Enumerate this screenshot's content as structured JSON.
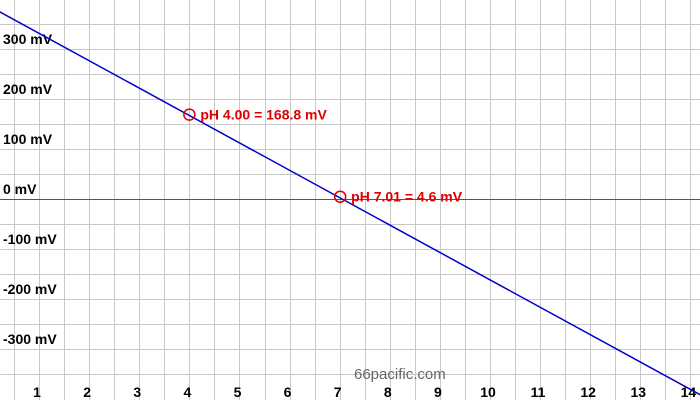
{
  "chart_data": {
    "type": "line",
    "title": "",
    "xlabel": "",
    "ylabel": "",
    "xlim": [
      0.2,
      14.2
    ],
    "ylim": [
      -377,
      400
    ],
    "grid": true,
    "x_ticks": [
      1,
      2,
      3,
      4,
      5,
      6,
      7,
      8,
      9,
      10,
      11,
      12,
      13,
      14
    ],
    "y_ticks": [
      300,
      200,
      100,
      0,
      -100,
      -200,
      -300
    ],
    "y_tick_labels": [
      "300 mV",
      "200 mV",
      "100 mV",
      "0 mV",
      "-100 mV",
      "-200 mV",
      "-300 mV"
    ],
    "series": [
      {
        "x": [
          0,
          14.2
        ],
        "y": [
          386.1,
          -391.7
        ]
      }
    ],
    "points": [
      {
        "x": 4.0,
        "y": 168.8,
        "label": "pH 4.00 = 168.8 mV"
      },
      {
        "x": 7.01,
        "y": 4.6,
        "label": "pH 7.01 = 4.6 mV"
      }
    ],
    "line_color": "#0000cc",
    "point_color": "#dd0000",
    "watermark": "66pacific.com"
  }
}
